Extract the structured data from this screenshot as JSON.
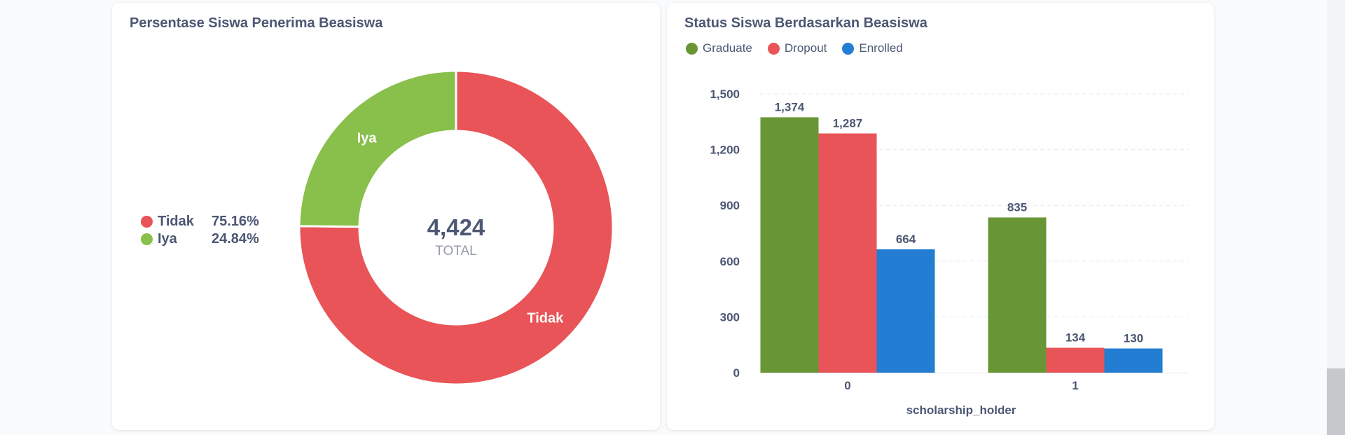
{
  "left_card": {
    "title": "Persentase Siswa Penerima Beasiswa"
  },
  "right_card": {
    "title": "Status Siswa Berdasarkan Beasiswa"
  },
  "chart_data": [
    {
      "type": "pie",
      "variant": "donut",
      "title": "Persentase Siswa Penerima Beasiswa",
      "total_value": "4,424",
      "total_label": "TOTAL",
      "legend_position": "left",
      "slices": [
        {
          "label": "Tidak",
          "percent": 75.16,
          "percent_label": "75.16%",
          "color": "#e85457"
        },
        {
          "label": "Iya",
          "percent": 24.84,
          "percent_label": "24.84%",
          "color": "#89bf4b"
        }
      ]
    },
    {
      "type": "bar",
      "title": "Status Siswa Berdasarkan Beasiswa",
      "xlabel": "scholarship_holder",
      "ylabel": "",
      "categories": [
        "0",
        "1"
      ],
      "ylim": [
        0,
        1500
      ],
      "yticks": [
        0,
        300,
        600,
        900,
        1200,
        1500
      ],
      "ytick_labels": [
        "0",
        "300",
        "600",
        "900",
        "1,200",
        "1,500"
      ],
      "grid": true,
      "legend_position": "top-left",
      "series": [
        {
          "name": "Graduate",
          "color": "#689636",
          "values": [
            1374,
            835
          ],
          "value_labels": [
            "1,374",
            "835"
          ]
        },
        {
          "name": "Dropout",
          "color": "#e85457",
          "values": [
            1287,
            134
          ],
          "value_labels": [
            "1,287",
            "134"
          ]
        },
        {
          "name": "Enrolled",
          "color": "#227dd3",
          "values": [
            664,
            130
          ],
          "value_labels": [
            "664",
            "130"
          ]
        }
      ]
    }
  ]
}
